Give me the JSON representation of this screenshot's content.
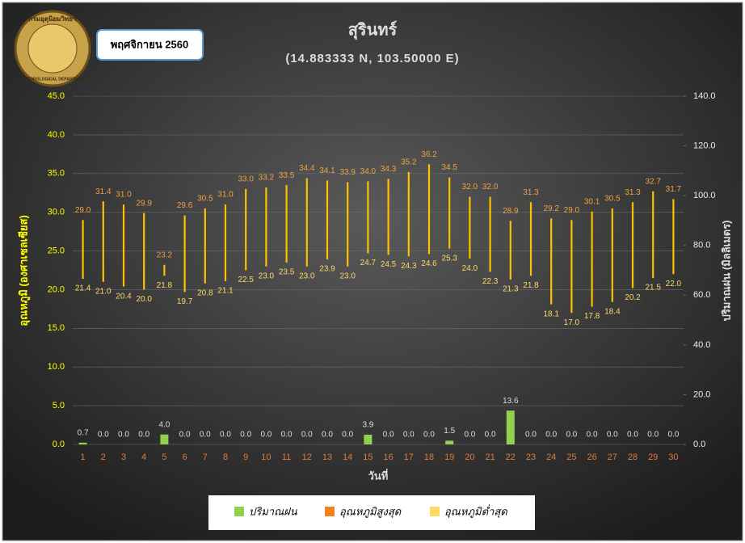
{
  "chart_data": {
    "type": "range-bar",
    "title": "สุรินทร์",
    "subtitle": "(14.883333 N, 103.50000 E)",
    "period": "พฤศจิกายน 2560",
    "logo": {
      "top_text": "กรมอุตุนิยมวิทยา",
      "bottom_text": "METEOROLOGICAL DEPARTMENT"
    },
    "xlabel": "วันที่",
    "ylabel": "อุณหภูมิ (องศาเซลเซียส)",
    "y2label": "ปริมาณฝน (มิลลิเมตร)",
    "categories": [
      "1",
      "2",
      "3",
      "4",
      "5",
      "6",
      "7",
      "8",
      "9",
      "10",
      "11",
      "12",
      "13",
      "14",
      "15",
      "16",
      "17",
      "18",
      "19",
      "20",
      "21",
      "22",
      "23",
      "24",
      "25",
      "26",
      "27",
      "28",
      "29",
      "30"
    ],
    "ylim": [
      0,
      45
    ],
    "yticks": [
      {
        "value": 0,
        "label": "0.0"
      },
      {
        "value": 5,
        "label": "5.0"
      },
      {
        "value": 10,
        "label": "10.0"
      },
      {
        "value": 15,
        "label": "15.0"
      },
      {
        "value": 20,
        "label": "20.0"
      },
      {
        "value": 25,
        "label": "25.0"
      },
      {
        "value": 30,
        "label": "30.0"
      },
      {
        "value": 35,
        "label": "35.0"
      },
      {
        "value": 40,
        "label": "40.0"
      },
      {
        "value": 45,
        "label": "45.0"
      }
    ],
    "y2lim": [
      0,
      140
    ],
    "y2ticks": [
      {
        "value": 0,
        "label": "0.0"
      },
      {
        "value": 20,
        "label": "20.0"
      },
      {
        "value": 40,
        "label": "40.0"
      },
      {
        "value": 60,
        "label": "60.0"
      },
      {
        "value": 80,
        "label": "80.0"
      },
      {
        "value": 100,
        "label": "100.0"
      },
      {
        "value": 120,
        "label": "120.0"
      },
      {
        "value": 140,
        "label": "140.0"
      }
    ],
    "grid": true,
    "range_color": "#ffc000",
    "series": [
      {
        "name": "ปริมาณฝน",
        "color": "#92d050",
        "axis": "y2",
        "values": [
          0.7,
          0,
          0,
          0,
          4.0,
          0,
          0,
          0,
          0,
          0,
          0,
          0,
          0,
          0,
          3.9,
          0,
          0,
          0,
          1.5,
          0,
          0,
          13.6,
          0,
          0,
          0,
          0,
          0,
          0,
          0,
          0
        ],
        "value_labels": [
          "0.7",
          "0.0",
          "0.0",
          "0.0",
          "4.0",
          "0.0",
          "0.0",
          "0.0",
          "0.0",
          "0.0",
          "0.0",
          "0.0",
          "0.0",
          "0.0",
          "3.9",
          "0.0",
          "0.0",
          "0.0",
          "1.5",
          "0.0",
          "0.0",
          "13.6",
          "0.0",
          "0.0",
          "0.0",
          "0.0",
          "0.0",
          "0.0",
          "0.0",
          "0.0"
        ]
      },
      {
        "name": "อุณหภูมิสูงสุด",
        "color": "#f58220",
        "values": [
          29.0,
          31.4,
          31.0,
          29.9,
          23.2,
          29.6,
          30.5,
          31.0,
          33.0,
          33.2,
          33.5,
          34.4,
          34.1,
          33.9,
          34.0,
          34.3,
          35.2,
          36.2,
          34.5,
          32.0,
          32.0,
          28.9,
          31.3,
          29.2,
          29.0,
          30.1,
          30.5,
          31.3,
          32.7,
          31.7
        ],
        "value_labels": [
          "29.0",
          "31.4",
          "31.0",
          "29.9",
          "23.2",
          "29.6",
          "30.5",
          "31.0",
          "33.0",
          "33.2",
          "33.5",
          "34.4",
          "34.1",
          "33.9",
          "34.0",
          "34.3",
          "35.2",
          "36.2",
          "34.5",
          "32.0",
          "32.0",
          "28.9",
          "31.3",
          "29.2",
          "29.0",
          "30.1",
          "30.5",
          "31.3",
          "32.7",
          "31.7"
        ]
      },
      {
        "name": "อุณหภูมิต่ำสุด",
        "color": "#ffd966",
        "values": [
          21.4,
          21.0,
          20.4,
          20.0,
          21.8,
          19.7,
          20.8,
          21.1,
          22.5,
          23.0,
          23.5,
          23.0,
          23.9,
          23.0,
          24.7,
          24.5,
          24.3,
          24.6,
          25.3,
          24.0,
          22.3,
          21.3,
          21.8,
          18.1,
          17.0,
          17.8,
          18.4,
          20.2,
          21.5,
          22.0
        ],
        "value_labels": [
          "21.4",
          "21.0",
          "20.4",
          "20.0",
          "21.8",
          "19.7",
          "20.8",
          "21.1",
          "22.5",
          "23.0",
          "23.5",
          "23.0",
          "23.9",
          "23.0",
          "24.7",
          "24.5",
          "24.3",
          "24.6",
          "25.3",
          "24.0",
          "22.3",
          "21.3",
          "21.8",
          "18.1",
          "17.0",
          "17.8",
          "18.4",
          "20.2",
          "21.5",
          "22.0"
        ]
      }
    ]
  }
}
